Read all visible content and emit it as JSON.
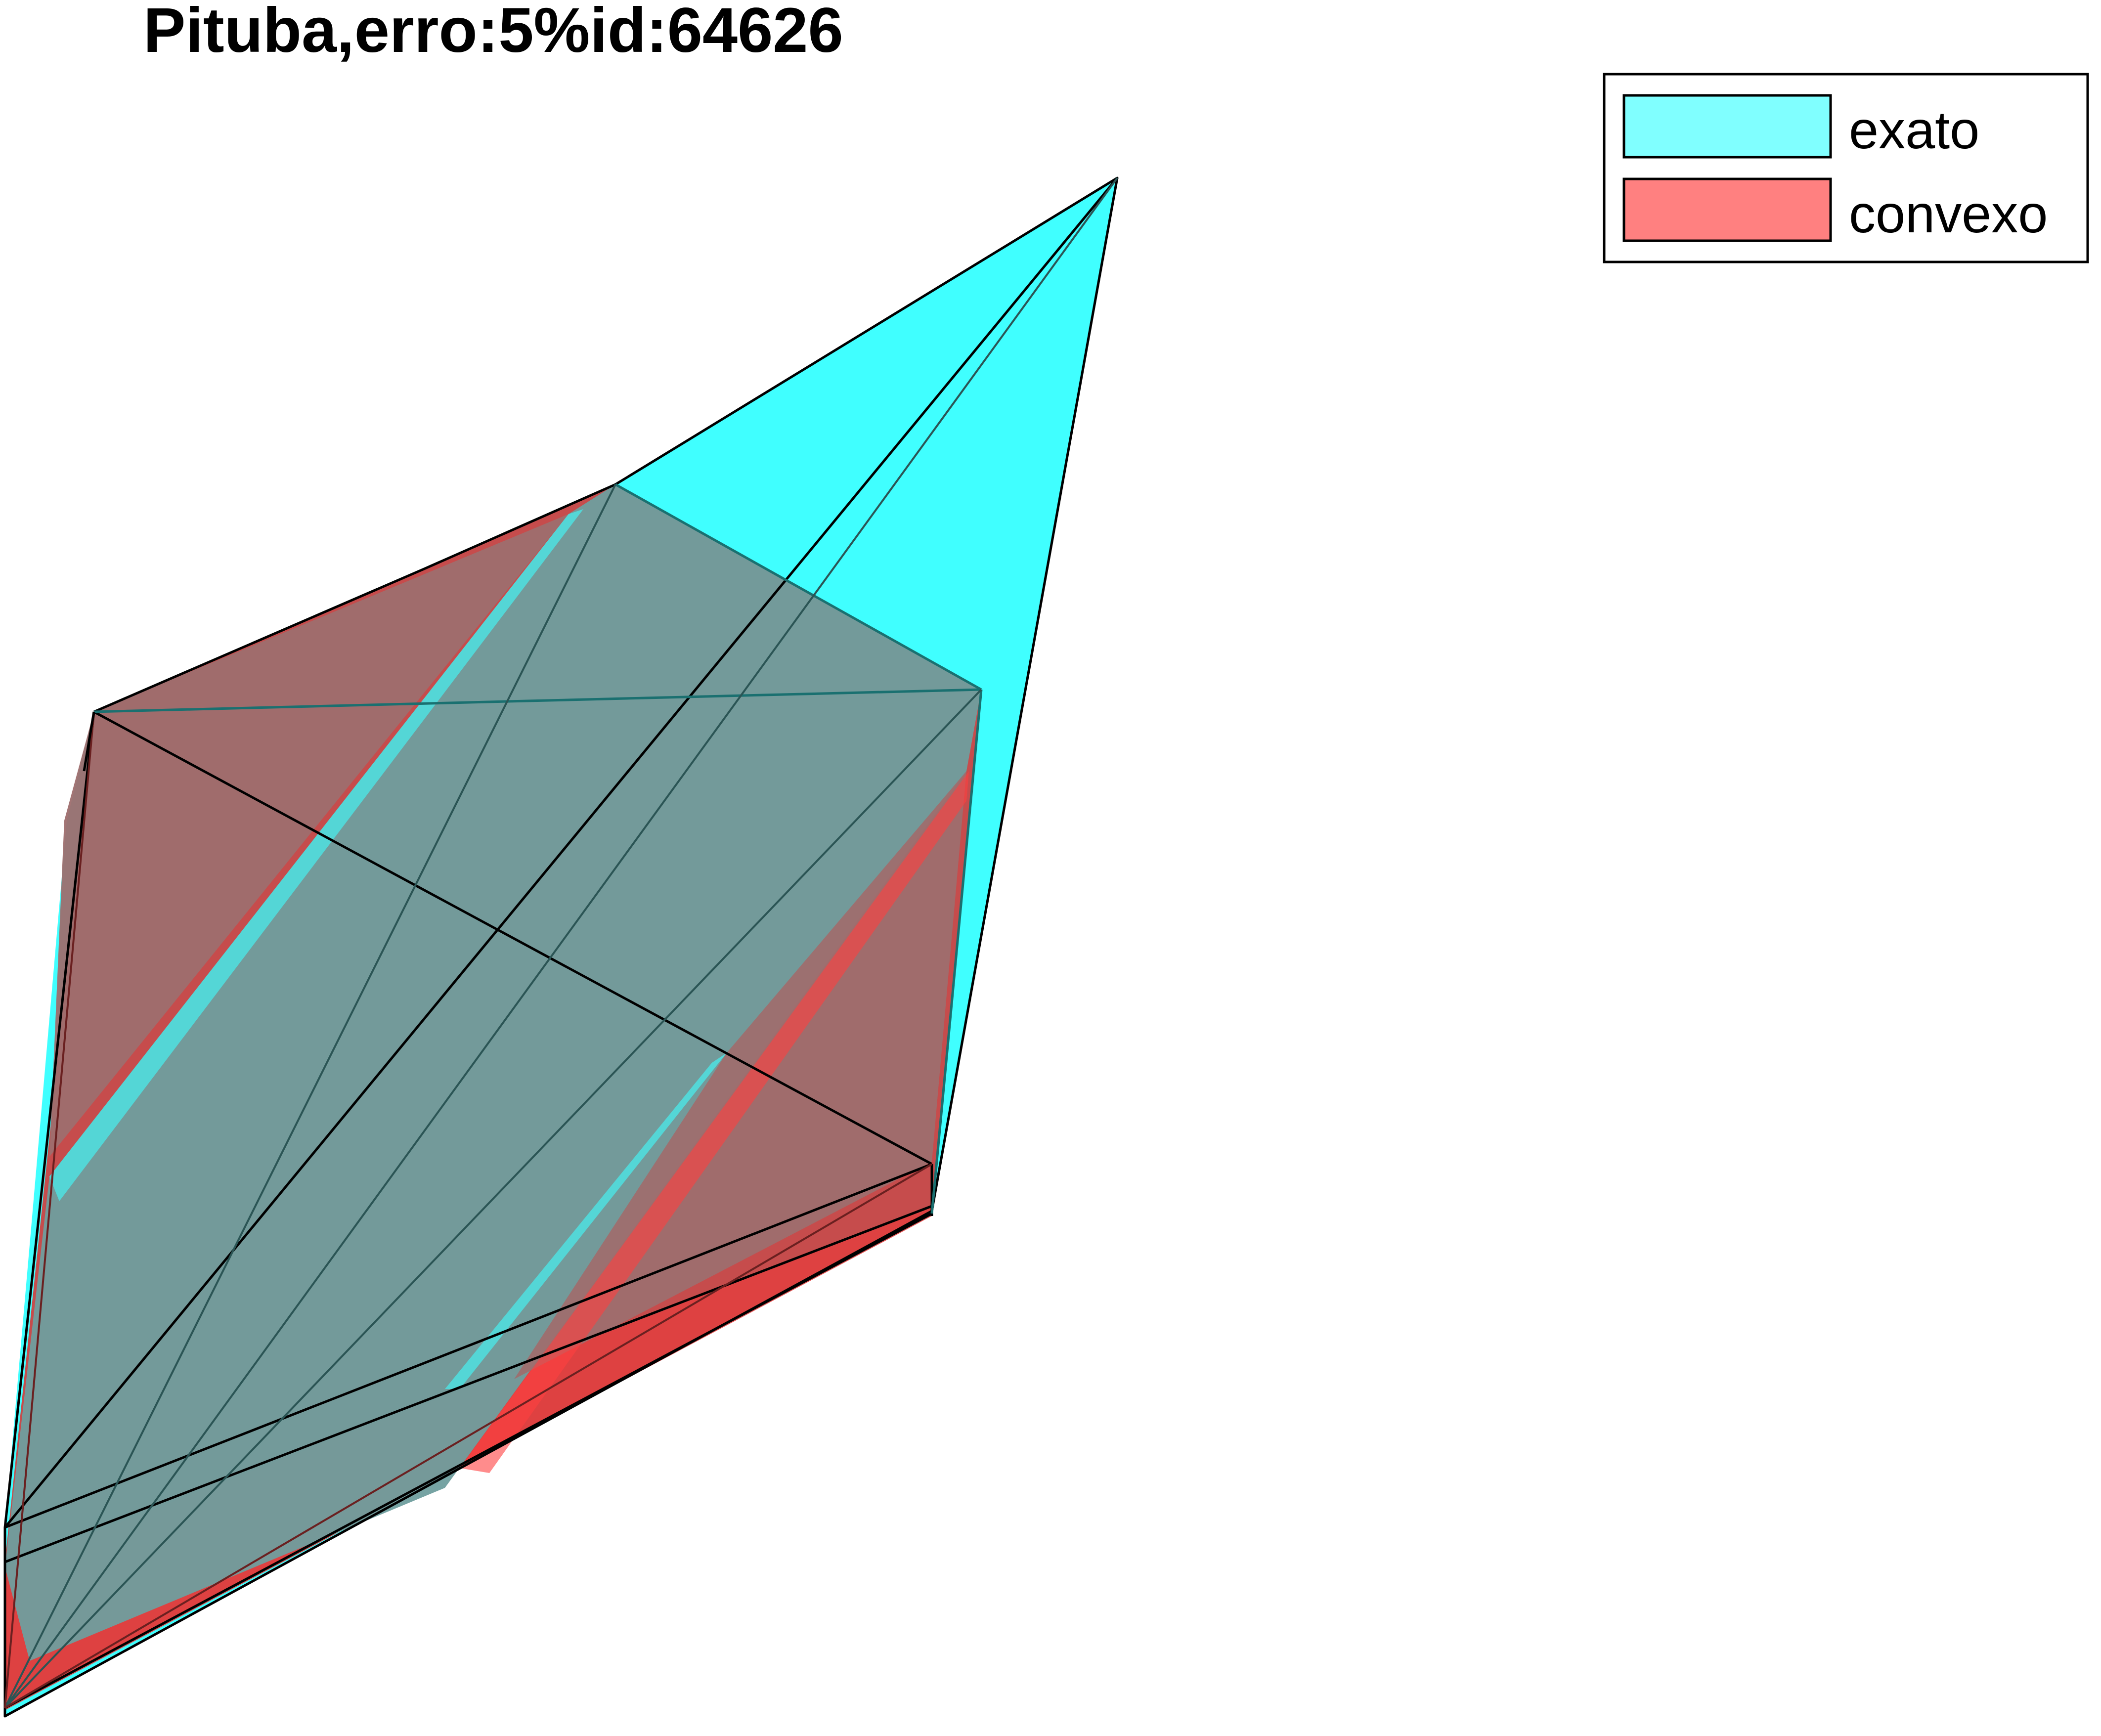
{
  "figure": {
    "title": "Pituba,erro:5%id:64626"
  },
  "legend": {
    "items": [
      {
        "label": "exato",
        "color": "#00ffff",
        "swatch_color": "#80ffff"
      },
      {
        "label": "convexo",
        "color": "#ff0000",
        "swatch_color": "#ff8080"
      }
    ]
  },
  "colors": {
    "exact_fill": "#00ffff",
    "convex_fill": "#ff0000",
    "overlap_fill": "#70a0a0",
    "edge": "#000000"
  }
}
